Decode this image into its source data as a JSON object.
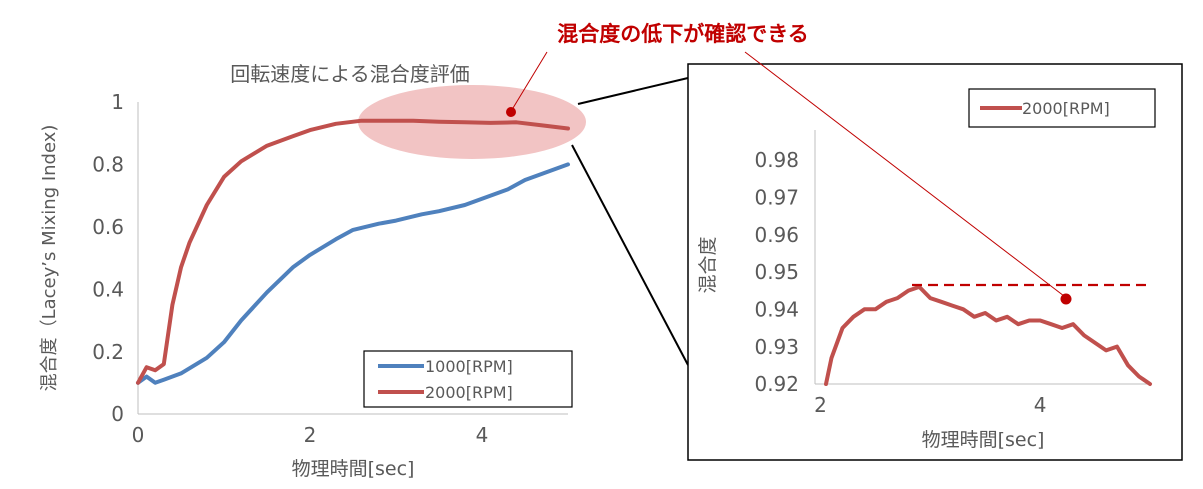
{
  "annotation": {
    "text": "混合度の低下が確認できる",
    "color": "#C00000"
  },
  "colors": {
    "series_1000": "#4F81BD",
    "series_2000": "#C0504D",
    "highlight": "#F2C4C4",
    "axis_text": "#595959"
  },
  "chart_data": [
    {
      "type": "line",
      "title": "回転速度による混合度評価",
      "xlabel": "物理時間[sec]",
      "ylabel": "混合度（Lacey’s Mixing Index)",
      "xlim": [
        0,
        5
      ],
      "ylim": [
        0,
        1
      ],
      "xticks": [
        "0",
        "2",
        "4"
      ],
      "yticks": [
        "0",
        "0.2",
        "0.4",
        "0.6",
        "0.8",
        "1"
      ],
      "grid": false,
      "legend": "bottom-right",
      "series": [
        {
          "name": "1000[RPM]",
          "color": "#4F81BD",
          "x": [
            0,
            0.1,
            0.2,
            0.3,
            0.5,
            0.8,
            1.0,
            1.2,
            1.5,
            1.8,
            2.0,
            2.3,
            2.5,
            2.8,
            3.0,
            3.3,
            3.5,
            3.8,
            4.0,
            4.3,
            4.5,
            4.8,
            5.0
          ],
          "y": [
            0.1,
            0.12,
            0.1,
            0.11,
            0.13,
            0.18,
            0.23,
            0.3,
            0.39,
            0.47,
            0.51,
            0.56,
            0.59,
            0.61,
            0.62,
            0.64,
            0.65,
            0.67,
            0.69,
            0.72,
            0.75,
            0.78,
            0.8
          ]
        },
        {
          "name": "2000[RPM]",
          "color": "#C0504D",
          "x": [
            0,
            0.1,
            0.2,
            0.3,
            0.4,
            0.5,
            0.6,
            0.8,
            1.0,
            1.2,
            1.5,
            1.8,
            2.0,
            2.3,
            2.6,
            2.9,
            3.2,
            3.5,
            3.8,
            4.1,
            4.4,
            4.7,
            5.0
          ],
          "y": [
            0.1,
            0.15,
            0.14,
            0.16,
            0.35,
            0.47,
            0.55,
            0.67,
            0.76,
            0.81,
            0.86,
            0.89,
            0.91,
            0.93,
            0.94,
            0.94,
            0.94,
            0.937,
            0.935,
            0.933,
            0.935,
            0.925,
            0.915
          ]
        }
      ]
    },
    {
      "type": "line",
      "title": "",
      "xlabel": "物理時間[sec]",
      "ylabel": "混合度",
      "xlim": [
        1.95,
        5
      ],
      "ylim": [
        0.92,
        0.988
      ],
      "xticks": [
        "2",
        "4"
      ],
      "yticks": [
        "0.92",
        "0.93",
        "0.94",
        "0.95",
        "0.96",
        "0.97",
        "0.98"
      ],
      "grid": false,
      "legend": "top-right",
      "reference_level": 0.9465,
      "series": [
        {
          "name": "2000[RPM]",
          "color": "#C0504D",
          "x": [
            2.05,
            2.1,
            2.2,
            2.3,
            2.4,
            2.5,
            2.6,
            2.7,
            2.8,
            2.9,
            3.0,
            3.1,
            3.2,
            3.3,
            3.4,
            3.5,
            3.6,
            3.7,
            3.8,
            3.9,
            4.0,
            4.1,
            4.2,
            4.3,
            4.4,
            4.5,
            4.6,
            4.7,
            4.8,
            4.9,
            5.0
          ],
          "y": [
            0.92,
            0.927,
            0.935,
            0.938,
            0.94,
            0.94,
            0.942,
            0.943,
            0.945,
            0.946,
            0.943,
            0.942,
            0.941,
            0.94,
            0.938,
            0.939,
            0.937,
            0.938,
            0.936,
            0.937,
            0.937,
            0.936,
            0.935,
            0.936,
            0.933,
            0.931,
            0.929,
            0.93,
            0.925,
            0.922,
            0.92
          ]
        }
      ]
    }
  ]
}
